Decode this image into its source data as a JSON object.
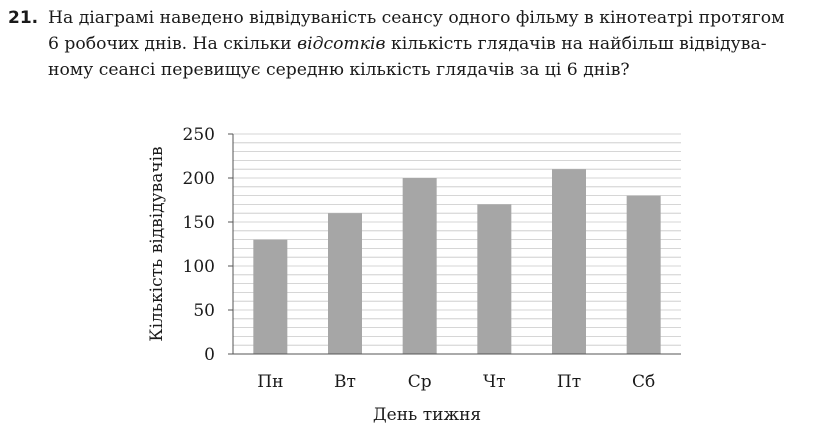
{
  "problem": {
    "number": "21.",
    "line1": "На діаграмі наведено відвідуваність сеансу одного фільму в кінотеатрі протягом",
    "line2_before": "6 робочих днів. На скільки ",
    "line2_em": "відсотків",
    "line2_after": " кількість глядачів на найбільш відвідува-",
    "line3": "ному сеансі перевищує середню кількість глядачів за ці 6 днів?"
  },
  "chart_data": {
    "type": "bar",
    "categories": [
      "Пн",
      "Вт",
      "Ср",
      "Чт",
      "Пт",
      "Сб"
    ],
    "values": [
      130,
      160,
      200,
      170,
      210,
      180
    ],
    "xlabel": "День тижня",
    "ylabel": "Кількість відвідувачів",
    "ylim": [
      0,
      250
    ],
    "yticks": [
      0,
      50,
      100,
      150,
      200,
      250
    ],
    "grid": true,
    "bar_color": "#a6a6a6",
    "grid_color": "#c8c8c8"
  }
}
